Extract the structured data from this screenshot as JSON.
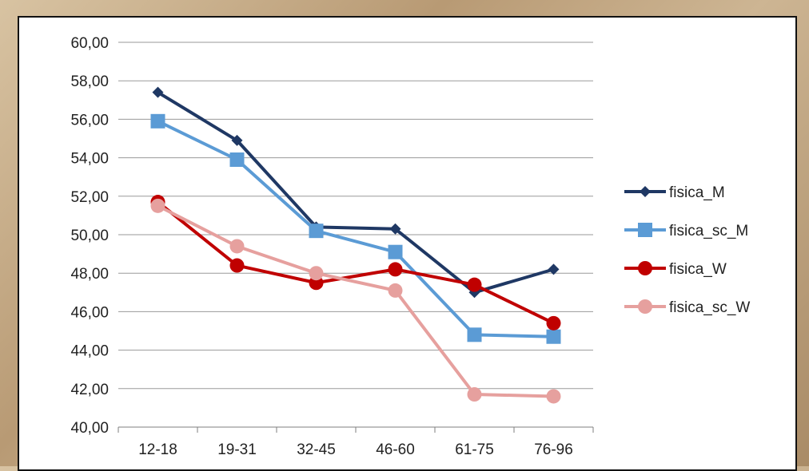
{
  "chart_data": {
    "type": "line",
    "categories": [
      "12-18",
      "19-31",
      "32-45",
      "46-60",
      "61-75",
      "76-96"
    ],
    "ylim": [
      40,
      60
    ],
    "yticks": [
      "40,00",
      "42,00",
      "44,00",
      "46,00",
      "48,00",
      "50,00",
      "52,00",
      "54,00",
      "56,00",
      "58,00",
      "60,00"
    ],
    "grid": true,
    "legend_position": "right",
    "series": [
      {
        "name": "fisica_M",
        "color": "#1f3864",
        "marker": "diamond",
        "values": [
          57.4,
          54.9,
          50.4,
          50.3,
          47.0,
          48.2
        ]
      },
      {
        "name": "fisica_sc_M",
        "color": "#5b9bd5",
        "marker": "square",
        "values": [
          55.9,
          53.9,
          50.2,
          49.1,
          44.8,
          44.7
        ]
      },
      {
        "name": "fisica_W",
        "color": "#c00000",
        "marker": "circle",
        "values": [
          51.7,
          48.4,
          47.5,
          48.2,
          47.4,
          45.4
        ]
      },
      {
        "name": "fisica_sc_W",
        "color": "#e6a09e",
        "marker": "circle",
        "values": [
          51.5,
          49.4,
          48.0,
          47.1,
          41.7,
          41.6
        ]
      }
    ]
  }
}
